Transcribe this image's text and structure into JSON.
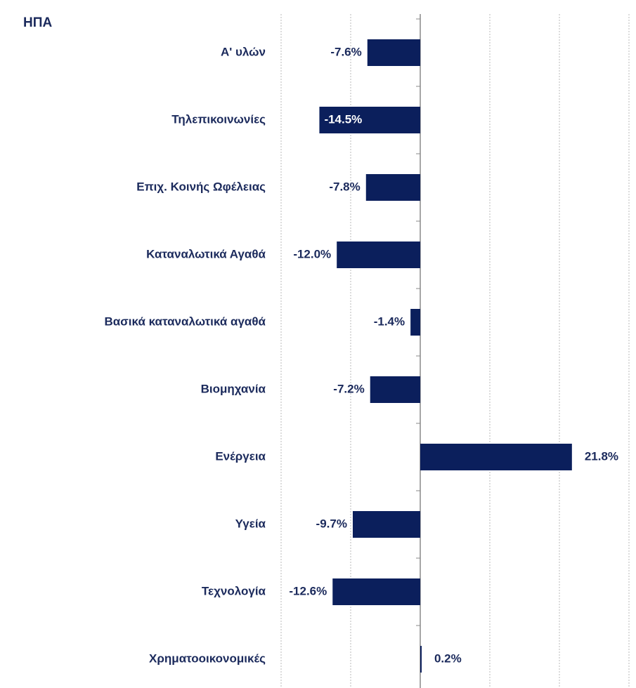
{
  "chart_data": {
    "type": "bar",
    "orientation": "horizontal",
    "title": "ΗΠΑ",
    "categories": [
      "A' υλών",
      "Τηλεπικοινωνίες",
      "Επιχ. Κοινής Ωφέλειας",
      "Καταναλωτικά Αγαθά",
      "Βασικά καταναλωτικά αγαθά",
      "Βιομηχανία",
      "Ενέργεια",
      "Υγεία",
      "Τεχνολογία",
      "Χρηματοοικονομικές"
    ],
    "values": [
      -7.6,
      -14.5,
      -7.8,
      -12.0,
      -1.4,
      -7.2,
      21.8,
      -9.7,
      -12.6,
      0.2
    ],
    "value_labels": [
      "-7.6%",
      "-14.5%",
      "-7.8%",
      "-12.0%",
      "-1.4%",
      "-7.2%",
      "21.8%",
      "-9.7%",
      "-12.6%",
      "0.2%"
    ],
    "color": "#0b1f5c",
    "xlim": [
      -20,
      30
    ],
    "xticks": [
      -20,
      -10,
      0,
      10,
      20,
      30
    ],
    "grid": true
  }
}
